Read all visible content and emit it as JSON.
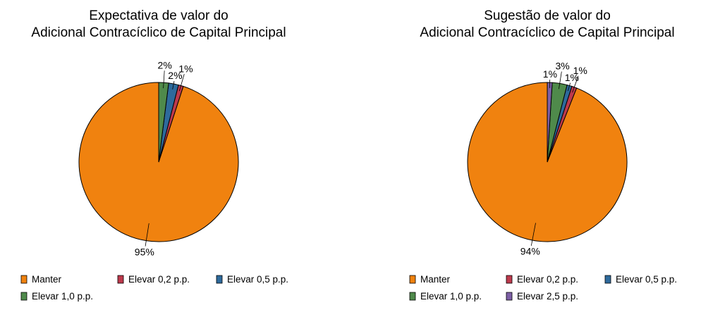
{
  "chart_data": [
    {
      "type": "pie",
      "title": [
        "Expectativa de valor do",
        "Adicional Contracíclico de Capital Principal"
      ],
      "categories": [
        "Manter",
        "Elevar 0,2 p.p.",
        "Elevar 0,5 p.p.",
        "Elevar 1,0 p.p."
      ],
      "values": [
        95,
        1,
        2,
        2
      ],
      "value_labels": [
        "95%",
        "1%",
        "2%",
        "2%"
      ],
      "colors": [
        "#f0820f",
        "#be3a4c",
        "#2e6a9c",
        "#4f8a4b"
      ]
    },
    {
      "type": "pie",
      "title": [
        "Sugestão de valor do",
        "Adicional Contracíclico de Capital Principal"
      ],
      "categories": [
        "Manter",
        "Elevar 0,2 p.p.",
        "Elevar 0,5 p.p.",
        "Elevar 1,0 p.p.",
        "Elevar 2,5 p.p."
      ],
      "values": [
        94,
        1,
        1,
        3,
        1
      ],
      "value_labels": [
        "94%",
        "1%",
        "1%",
        "3%",
        "1%"
      ],
      "colors": [
        "#f0820f",
        "#be3a4c",
        "#2e6a9c",
        "#4f8a4b",
        "#7d5fa6"
      ]
    }
  ]
}
